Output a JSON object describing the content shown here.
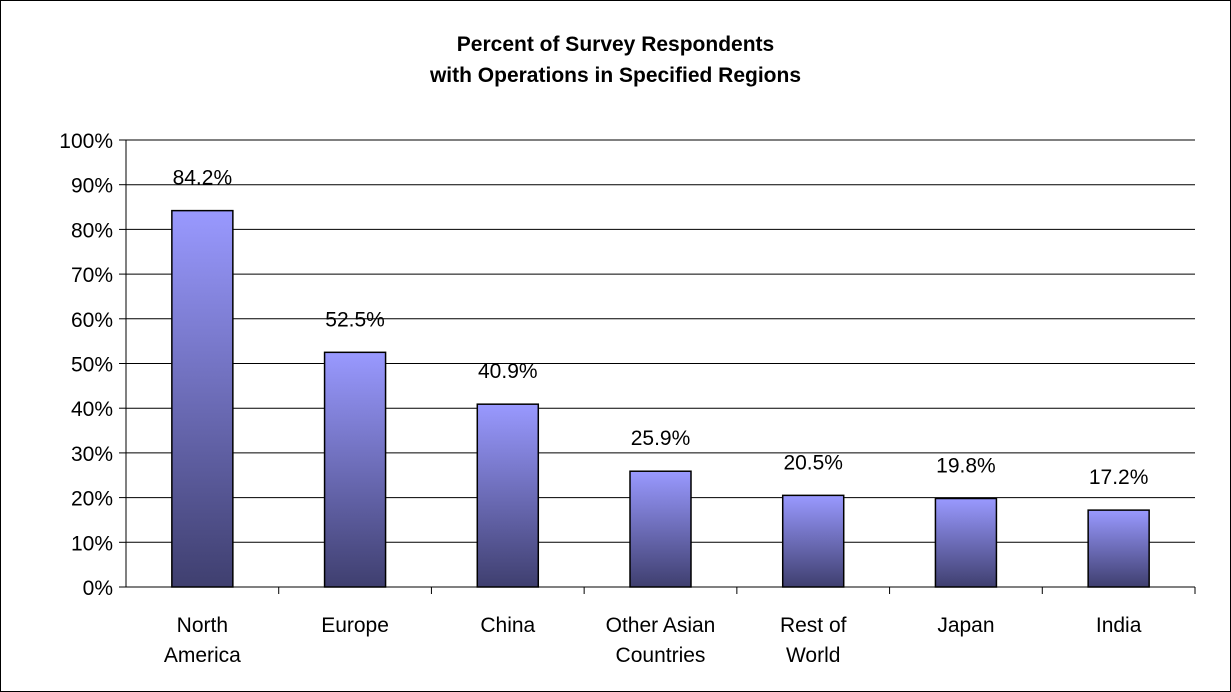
{
  "chart_data": {
    "type": "bar",
    "title_lines": [
      "Percent of Survey Respondents",
      "with Operations in Specified Regions"
    ],
    "categories": [
      [
        "North",
        "America"
      ],
      [
        "Europe"
      ],
      [
        "China"
      ],
      [
        "Other Asian",
        "Countries"
      ],
      [
        "Rest of",
        "World"
      ],
      [
        "Japan"
      ],
      [
        "India"
      ]
    ],
    "values": [
      84.2,
      52.5,
      40.9,
      25.9,
      20.5,
      19.8,
      17.2
    ],
    "data_labels": [
      "84.2%",
      "52.5%",
      "40.9%",
      "25.9%",
      "20.5%",
      "19.8%",
      "17.2%"
    ],
    "ylim": [
      0,
      100
    ],
    "yticks": [
      0,
      10,
      20,
      30,
      40,
      50,
      60,
      70,
      80,
      90,
      100
    ],
    "ytick_labels": [
      "0%",
      "10%",
      "20%",
      "30%",
      "40%",
      "50%",
      "60%",
      "70%",
      "80%",
      "90%",
      "100%"
    ],
    "grid": true,
    "legend": "none",
    "xlabel": "",
    "ylabel": "",
    "colors": {
      "bar_top": "#9999ff",
      "bar_bottom": "#3f3f6f",
      "bar_outline": "#000000",
      "gridline": "#000000"
    }
  }
}
